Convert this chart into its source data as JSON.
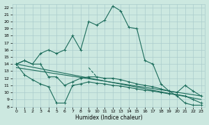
{
  "background_color": "#cce8e0",
  "grid_color": "#aacccc",
  "line_color": "#1a6b5a",
  "xlabel": "Humidex (Indice chaleur)",
  "xlim": [
    -0.5,
    23.5
  ],
  "ylim": [
    8,
    22.5
  ],
  "yticks": [
    8,
    9,
    10,
    11,
    12,
    13,
    14,
    15,
    16,
    17,
    18,
    19,
    20,
    21,
    22
  ],
  "xticks": [
    0,
    1,
    2,
    3,
    4,
    5,
    6,
    7,
    8,
    9,
    10,
    11,
    12,
    13,
    14,
    15,
    16,
    17,
    18,
    19,
    20,
    21,
    22,
    23
  ],
  "lines": [
    {
      "x": [
        0,
        1,
        2,
        3,
        4,
        5,
        6,
        7,
        8,
        9,
        10,
        11,
        12,
        13,
        14,
        15,
        16,
        17,
        18,
        19,
        20,
        21,
        22,
        23
      ],
      "y": [
        14.0,
        14.5,
        14.0,
        15.5,
        16.0,
        15.5,
        16.0,
        18.0,
        16.0,
        20.0,
        19.5,
        20.2,
        22.2,
        21.5,
        19.2,
        19.0,
        14.5,
        14.0,
        11.2,
        10.2,
        9.5,
        8.5,
        8.2,
        8.2
      ],
      "marker": true
    },
    {
      "x": [
        0,
        1,
        2,
        3,
        4,
        5,
        6,
        7,
        8,
        9,
        10,
        11,
        12,
        13,
        14,
        15,
        16,
        17,
        18,
        19,
        20,
        21,
        22,
        23
      ],
      "y": [
        14.0,
        14.5,
        14.0,
        14.0,
        12.2,
        12.2,
        11.0,
        11.5,
        12.0,
        12.2,
        12.2,
        12.0,
        12.0,
        11.8,
        11.5,
        11.2,
        11.0,
        10.8,
        10.5,
        10.2,
        10.0,
        11.0,
        10.2,
        9.5
      ],
      "marker": true
    },
    {
      "x": [
        0,
        1,
        2,
        3,
        4,
        5,
        6,
        7,
        8,
        9,
        10,
        11,
        12,
        13,
        14,
        15,
        16,
        17,
        18,
        19,
        20,
        21,
        22,
        23
      ],
      "y": [
        14.0,
        12.5,
        11.8,
        11.2,
        10.8,
        8.5,
        8.5,
        11.0,
        11.2,
        11.5,
        11.3,
        11.2,
        11.0,
        10.9,
        10.7,
        10.5,
        10.3,
        10.2,
        10.0,
        9.8,
        9.7,
        9.5,
        9.0,
        8.5
      ],
      "marker": true
    },
    {
      "x": [
        0,
        23
      ],
      "y": [
        14.0,
        9.0
      ],
      "marker": false
    },
    {
      "x": [
        0,
        23
      ],
      "y": [
        13.5,
        9.5
      ],
      "marker": false
    },
    {
      "x": [
        9,
        10
      ],
      "y": [
        13.5,
        12.2
      ],
      "marker": false,
      "dashed": true
    }
  ]
}
